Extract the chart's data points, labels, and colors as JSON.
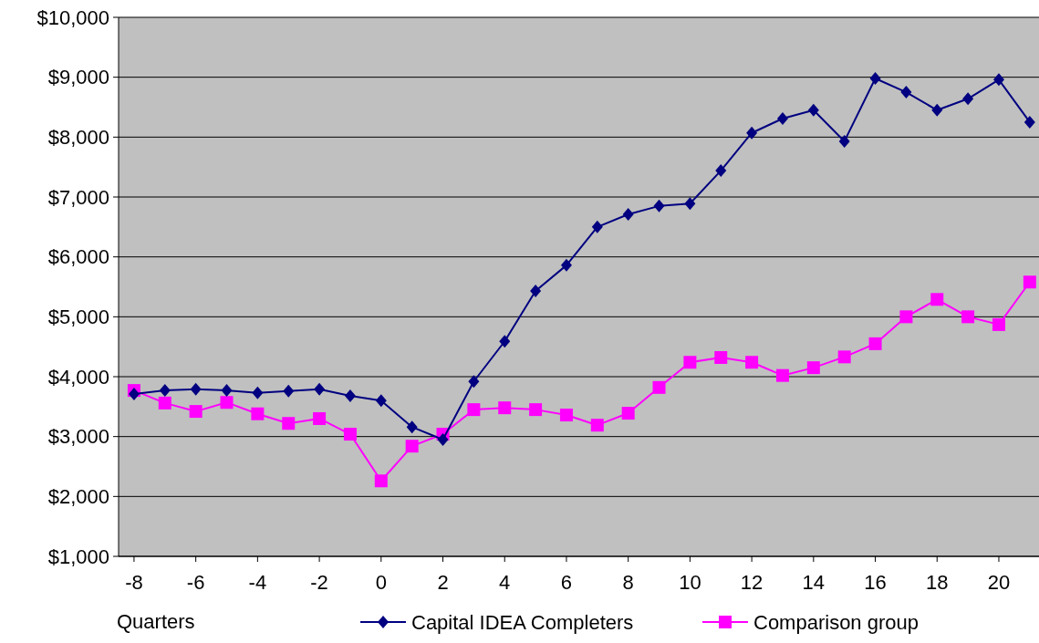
{
  "chart_data": {
    "type": "line",
    "xlabel": "Quarters",
    "x": [
      -8,
      -7,
      -6,
      -5,
      -4,
      -3,
      -2,
      -1,
      0,
      1,
      2,
      3,
      4,
      5,
      6,
      7,
      8,
      9,
      10,
      11,
      12,
      13,
      14,
      15,
      16,
      17,
      18,
      19,
      20,
      21
    ],
    "series": [
      {
        "name": "Capital IDEA Completers",
        "color": "#000080",
        "marker": "diamond",
        "values": [
          3710,
          3770,
          3790,
          3770,
          3730,
          3760,
          3790,
          3680,
          3600,
          3160,
          2950,
          3920,
          4590,
          5430,
          5860,
          6500,
          6710,
          6850,
          6890,
          7440,
          8070,
          8310,
          8450,
          7930,
          8980,
          8750,
          8450,
          8640,
          8960,
          8250
        ]
      },
      {
        "name": "Comparison group",
        "color": "#ff00ff",
        "marker": "square",
        "values": [
          3770,
          3560,
          3420,
          3570,
          3380,
          3220,
          3300,
          3040,
          2260,
          2840,
          3040,
          3450,
          3480,
          3450,
          3360,
          3190,
          3390,
          3820,
          4240,
          4320,
          4240,
          4020,
          4150,
          4330,
          4550,
          5000,
          5290,
          5000,
          4870,
          5580
        ]
      }
    ],
    "xlim": [
      -8.5,
      21.3
    ],
    "xticks": [
      -8,
      -6,
      -4,
      -2,
      0,
      2,
      4,
      6,
      8,
      10,
      12,
      14,
      16,
      18,
      20
    ],
    "ylim": [
      1000,
      10000
    ],
    "yticks": [
      {
        "value": 1000,
        "label": "$1,000"
      },
      {
        "value": 2000,
        "label": "$2,000"
      },
      {
        "value": 3000,
        "label": "$3,000"
      },
      {
        "value": 4000,
        "label": "$4,000"
      },
      {
        "value": 5000,
        "label": "$5,000"
      },
      {
        "value": 6000,
        "label": "$6,000"
      },
      {
        "value": 7000,
        "label": "$7,000"
      },
      {
        "value": 8000,
        "label": "$8,000"
      },
      {
        "value": 9000,
        "label": "$9,000"
      },
      {
        "value": 10000,
        "label": "$10,000"
      }
    ],
    "grid": "y",
    "legend": "bottom",
    "line_style": "solid"
  }
}
